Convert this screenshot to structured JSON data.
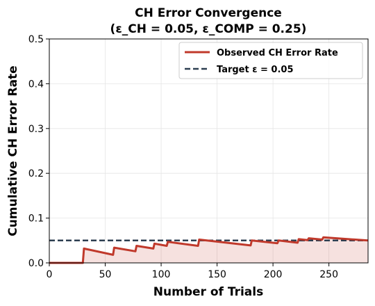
{
  "chart_data": {
    "type": "line",
    "title_line1": "CH Error Convergence",
    "title_line2": "(ε_CH = 0.05, ε_COMP = 0.25)",
    "xlabel": "Number of Trials",
    "ylabel": "Cumulative CH Error Rate",
    "xlim": [
      0,
      285
    ],
    "ylim": [
      0,
      0.5
    ],
    "xticks": [
      "0",
      "50",
      "100",
      "150",
      "200",
      "250"
    ],
    "xtick_values": [
      0,
      50,
      100,
      150,
      200,
      250
    ],
    "yticks": [
      "0.0",
      "0.1",
      "0.2",
      "0.3",
      "0.4",
      "0.5"
    ],
    "ytick_values": [
      0,
      0.1,
      0.2,
      0.3,
      0.4,
      0.5
    ],
    "grid": true,
    "legend_position": "top-right",
    "series": [
      {
        "name": "Observed CH Error Rate",
        "color": "#c0392b",
        "fill": true,
        "x": [
          0,
          30,
          31,
          57,
          58,
          77,
          78,
          93,
          94,
          105,
          106,
          133,
          134,
          180,
          181,
          204,
          205,
          222,
          223,
          231,
          232,
          244,
          245,
          285
        ],
        "y": [
          0.0,
          0.0,
          0.032,
          0.018,
          0.034,
          0.026,
          0.038,
          0.032,
          0.043,
          0.038,
          0.047,
          0.038,
          0.052,
          0.039,
          0.05,
          0.044,
          0.05,
          0.045,
          0.053,
          0.051,
          0.055,
          0.052,
          0.057,
          0.05
        ]
      },
      {
        "name": "Target ε = 0.05",
        "color": "#2c3e50",
        "dashed": true,
        "y": 0.05
      }
    ]
  }
}
